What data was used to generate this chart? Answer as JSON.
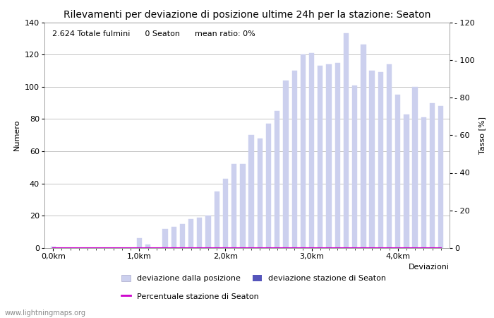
{
  "title": "Rilevamenti per deviazione di posizione ultime 24h per la stazione: Seaton",
  "subtitle": "2.624 Totale fulmini      0 Seaton      mean ratio: 0%",
  "xlabel": "Deviazioni",
  "ylabel_left": "Numero",
  "ylabel_right": "Tasso [%]",
  "watermark": "www.lightningmaps.org",
  "bar_color": "#ccd0ee",
  "bar_color_station": "#5555bb",
  "line_color": "#cc00cc",
  "x_tick_positions": [
    0,
    10,
    20,
    30,
    40
  ],
  "x_tick_labels": [
    "0,0km",
    "1,0km",
    "2,0km",
    "3,0km",
    "4,0km"
  ],
  "values": [
    1,
    0,
    0,
    0,
    0,
    0,
    0,
    0,
    0,
    0,
    6,
    2,
    0,
    12,
    13,
    15,
    18,
    19,
    20,
    35,
    43,
    52,
    52,
    70,
    68,
    77,
    85,
    104,
    110,
    120,
    121,
    113,
    114,
    115,
    133,
    101,
    126,
    110,
    109,
    114,
    95,
    83,
    100,
    81,
    90,
    88
  ],
  "station_values": [
    0,
    0,
    0,
    0,
    0,
    0,
    0,
    0,
    0,
    0,
    0,
    0,
    0,
    0,
    0,
    0,
    0,
    0,
    0,
    0,
    0,
    0,
    0,
    0,
    0,
    0,
    0,
    0,
    0,
    0,
    0,
    0,
    0,
    0,
    0,
    0,
    0,
    0,
    0,
    0,
    0,
    0,
    0,
    0,
    0,
    0
  ],
  "percentage_values": [
    0,
    0,
    0,
    0,
    0,
    0,
    0,
    0,
    0,
    0,
    0,
    0,
    0,
    0,
    0,
    0,
    0,
    0,
    0,
    0,
    0,
    0,
    0,
    0,
    0,
    0,
    0,
    0,
    0,
    0,
    0,
    0,
    0,
    0,
    0,
    0,
    0,
    0,
    0,
    0,
    0,
    0,
    0,
    0,
    0,
    0
  ],
  "ylim_left": [
    0,
    140
  ],
  "ylim_right": [
    0,
    120
  ],
  "yticks_left": [
    0,
    20,
    40,
    60,
    80,
    100,
    120,
    140
  ],
  "yticks_right": [
    0,
    20,
    40,
    60,
    80,
    100,
    120
  ],
  "ytick_right_labels": [
    "0",
    "- 20",
    "- 40",
    "- 60",
    "- 80",
    "- 100",
    "- 120"
  ],
  "legend_labels": [
    "deviazione dalla posizione",
    "deviazione stazione di Seaton",
    "Percentuale stazione di Seaton"
  ],
  "background_color": "#ffffff",
  "grid_color": "#bbbbbb",
  "title_fontsize": 10,
  "subtitle_fontsize": 8,
  "axis_fontsize": 8,
  "tick_fontsize": 8,
  "bar_width": 0.6
}
